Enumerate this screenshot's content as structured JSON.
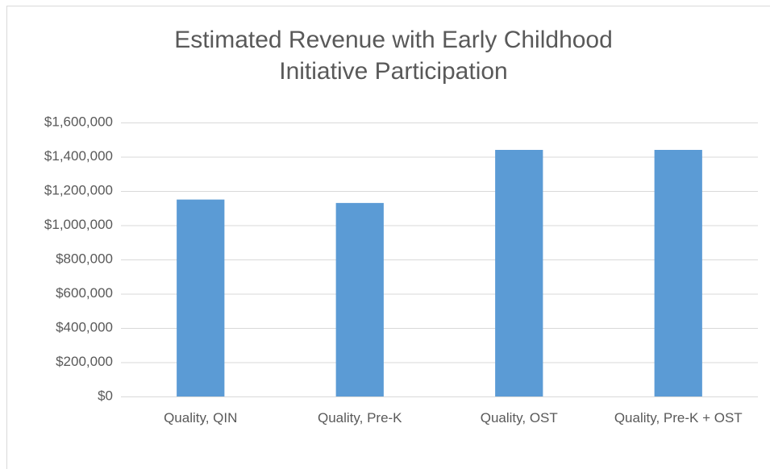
{
  "chart_data": {
    "type": "bar",
    "title": "Estimated Revenue with Early Childhood Initiative Participation",
    "categories": [
      "Quality, QIN",
      "Quality, Pre-K",
      "Quality, OST",
      "Quality, Pre-K + OST"
    ],
    "values": [
      1150000,
      1130000,
      1440000,
      1440000
    ],
    "color": "#5b9bd5",
    "ylim": [
      0,
      1600000
    ],
    "yticks": [
      {
        "value": 0,
        "label": "$0"
      },
      {
        "value": 200000,
        "label": "$200,000"
      },
      {
        "value": 400000,
        "label": "$400,000"
      },
      {
        "value": 600000,
        "label": "$600,000"
      },
      {
        "value": 800000,
        "label": "$800,000"
      },
      {
        "value": 1000000,
        "label": "$1,000,000"
      },
      {
        "value": 1200000,
        "label": "$1,200,000"
      },
      {
        "value": 1400000,
        "label": "$1,400,000"
      },
      {
        "value": 1600000,
        "label": "$1,600,000"
      }
    ],
    "grid": true
  }
}
